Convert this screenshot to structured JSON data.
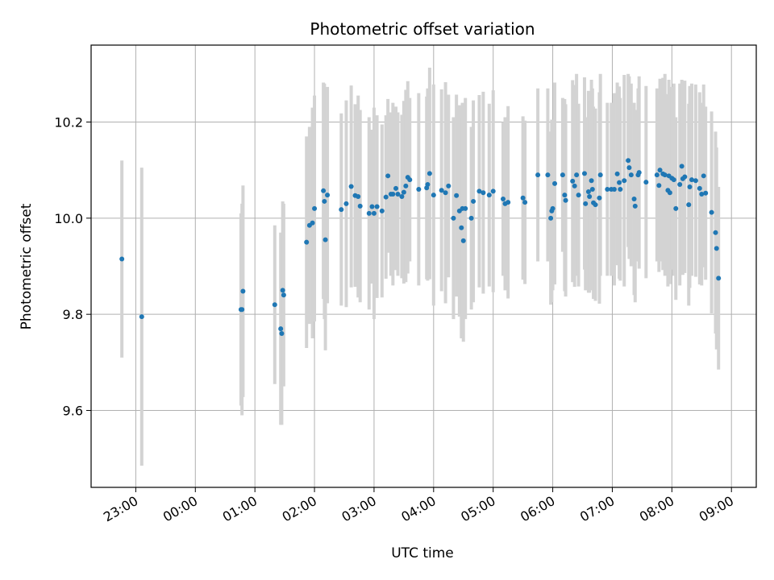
{
  "chart_data": {
    "type": "scatter",
    "title": "Photometric offset variation",
    "xlabel": "UTC time",
    "ylabel": "Photometric offset",
    "x_unit": "hours, UTC (22:00 on the first night to 09:00 next morning)",
    "xlim": [
      "22:15",
      "09:25"
    ],
    "ylim": [
      9.44,
      10.36
    ],
    "x_ticks": [
      "23:00",
      "00:00",
      "01:00",
      "02:00",
      "03:00",
      "04:00",
      "05:00",
      "06:00",
      "07:00",
      "08:00",
      "09:00"
    ],
    "y_ticks": [
      "9.6",
      "9.8",
      "10.0",
      "10.2"
    ],
    "y_tick_values": [
      9.6,
      9.8,
      10.0,
      10.2
    ],
    "grid": true,
    "colors": {
      "point": "#1f77b4",
      "errorbar": "#d3d3d3",
      "grid": "#b0b0b0",
      "axes": "#000000"
    },
    "series": [
      {
        "points": [
          [
            "22:46",
            9.915,
            0.205
          ],
          [
            "23:06",
            9.795,
            0.31
          ],
          [
            "00:46",
            9.81,
            0.2
          ],
          [
            "00:47",
            9.81,
            0.22
          ],
          [
            "00:48",
            9.848,
            0.22
          ],
          [
            "01:20",
            9.82,
            0.165
          ],
          [
            "01:26",
            9.77,
            0.2
          ],
          [
            "01:27",
            9.76,
            0.19
          ],
          [
            "01:28",
            9.85,
            0.185
          ],
          [
            "01:29",
            9.84,
            0.19
          ],
          [
            "01:52",
            9.95,
            0.22
          ],
          [
            "01:55",
            9.985,
            0.205
          ],
          [
            "01:58",
            9.99,
            0.24
          ],
          [
            "02:00",
            10.02,
            0.235
          ],
          [
            "02:09",
            10.057,
            0.225
          ],
          [
            "02:10",
            10.035,
            0.245
          ],
          [
            "02:11",
            9.955,
            0.23
          ],
          [
            "02:13",
            10.048,
            0.225
          ],
          [
            "02:27",
            10.018,
            0.2
          ],
          [
            "02:32",
            10.03,
            0.215
          ],
          [
            "02:37",
            10.066,
            0.21
          ],
          [
            "02:41",
            10.047,
            0.19
          ],
          [
            "02:44",
            10.045,
            0.21
          ],
          [
            "02:46",
            10.025,
            0.2
          ],
          [
            "02:55",
            10.01,
            0.2
          ],
          [
            "02:58",
            10.024,
            0.16
          ],
          [
            "03:00",
            10.01,
            0.22
          ],
          [
            "03:03",
            10.024,
            0.19
          ],
          [
            "03:08",
            10.015,
            0.18
          ],
          [
            "03:12",
            10.044,
            0.17
          ],
          [
            "03:14",
            10.088,
            0.16
          ],
          [
            "03:17",
            10.05,
            0.17
          ],
          [
            "03:19",
            10.05,
            0.19
          ],
          [
            "03:22",
            10.062,
            0.17
          ],
          [
            "03:24",
            10.05,
            0.17
          ],
          [
            "03:28",
            10.045,
            0.17
          ],
          [
            "03:30",
            10.054,
            0.19
          ],
          [
            "03:32",
            10.067,
            0.2
          ],
          [
            "03:34",
            10.085,
            0.2
          ],
          [
            "03:36",
            10.08,
            0.17
          ],
          [
            "03:45",
            10.06,
            0.2
          ],
          [
            "03:53",
            10.063,
            0.19
          ],
          [
            "03:54",
            10.07,
            0.2
          ],
          [
            "03:56",
            10.093,
            0.22
          ],
          [
            "04:00",
            10.048,
            0.23
          ],
          [
            "04:08",
            10.058,
            0.21
          ],
          [
            "04:12",
            10.053,
            0.23
          ],
          [
            "04:15",
            10.067,
            0.19
          ],
          [
            "04:20",
            10.0,
            0.21
          ],
          [
            "04:23",
            10.047,
            0.21
          ],
          [
            "04:26",
            10.015,
            0.22
          ],
          [
            "04:28",
            9.98,
            0.23
          ],
          [
            "04:29",
            10.02,
            0.22
          ],
          [
            "04:30",
            9.953,
            0.21
          ],
          [
            "04:32",
            10.02,
            0.23
          ],
          [
            "04:38",
            10.0,
            0.19
          ],
          [
            "04:40",
            10.035,
            0.21
          ],
          [
            "04:46",
            10.056,
            0.2
          ],
          [
            "04:50",
            10.053,
            0.21
          ],
          [
            "04:56",
            10.048,
            0.19
          ],
          [
            "05:00",
            10.056,
            0.21
          ],
          [
            "05:10",
            10.04,
            0.16
          ],
          [
            "05:12",
            10.03,
            0.18
          ],
          [
            "05:15",
            10.033,
            0.2
          ],
          [
            "05:30",
            10.042,
            0.17
          ],
          [
            "05:32",
            10.033,
            0.17
          ],
          [
            "05:45",
            10.09,
            0.18
          ],
          [
            "05:55",
            10.09,
            0.18
          ],
          [
            "05:58",
            10.0,
            0.18
          ],
          [
            "05:59",
            10.015,
            0.19
          ],
          [
            "06:00",
            10.02,
            0.17
          ],
          [
            "06:02",
            10.072,
            0.21
          ],
          [
            "06:10",
            10.09,
            0.16
          ],
          [
            "06:12",
            10.048,
            0.2
          ],
          [
            "06:13",
            10.037,
            0.2
          ],
          [
            "06:20",
            10.077,
            0.21
          ],
          [
            "06:22",
            10.067,
            0.21
          ],
          [
            "06:24",
            10.09,
            0.21
          ],
          [
            "06:26",
            10.048,
            0.19
          ],
          [
            "06:32",
            10.093,
            0.2
          ],
          [
            "06:33",
            10.03,
            0.18
          ],
          [
            "06:36",
            10.055,
            0.21
          ],
          [
            "06:37",
            10.045,
            0.2
          ],
          [
            "06:39",
            10.078,
            0.21
          ],
          [
            "06:40",
            10.06,
            0.21
          ],
          [
            "06:41",
            10.032,
            0.2
          ],
          [
            "06:43",
            10.028,
            0.2
          ],
          [
            "06:47",
            10.042,
            0.22
          ],
          [
            "06:48",
            10.09,
            0.21
          ],
          [
            "06:55",
            10.06,
            0.18
          ],
          [
            "06:59",
            10.06,
            0.18
          ],
          [
            "07:02",
            10.06,
            0.2
          ],
          [
            "07:05",
            10.092,
            0.19
          ],
          [
            "07:07",
            10.074,
            0.2
          ],
          [
            "07:08",
            10.06,
            0.19
          ],
          [
            "07:12",
            10.078,
            0.22
          ],
          [
            "07:16",
            10.12,
            0.18
          ],
          [
            "07:17",
            10.105,
            0.19
          ],
          [
            "07:19",
            10.09,
            0.19
          ],
          [
            "07:22",
            10.04,
            0.2
          ],
          [
            "07:23",
            10.025,
            0.2
          ],
          [
            "07:26",
            10.09,
            0.18
          ],
          [
            "07:27",
            10.095,
            0.2
          ],
          [
            "07:34",
            10.075,
            0.2
          ],
          [
            "07:45",
            10.09,
            0.18
          ],
          [
            "07:47",
            10.068,
            0.18
          ],
          [
            "07:48",
            10.1,
            0.19
          ],
          [
            "07:51",
            10.092,
            0.2
          ],
          [
            "07:53",
            10.09,
            0.21
          ],
          [
            "07:56",
            10.058,
            0.2
          ],
          [
            "07:57",
            10.088,
            0.2
          ],
          [
            "07:58",
            10.053,
            0.19
          ],
          [
            "08:00",
            10.083,
            0.19
          ],
          [
            "08:02",
            10.08,
            0.2
          ],
          [
            "08:04",
            10.02,
            0.19
          ],
          [
            "08:08",
            10.07,
            0.21
          ],
          [
            "08:10",
            10.108,
            0.18
          ],
          [
            "08:11",
            10.082,
            0.2
          ],
          [
            "08:13",
            10.086,
            0.2
          ],
          [
            "08:17",
            10.028,
            0.21
          ],
          [
            "08:18",
            10.065,
            0.21
          ],
          [
            "08:20",
            10.08,
            0.2
          ],
          [
            "08:24",
            10.078,
            0.2
          ],
          [
            "08:28",
            10.062,
            0.2
          ],
          [
            "08:30",
            10.05,
            0.19
          ],
          [
            "08:32",
            10.088,
            0.19
          ],
          [
            "08:34",
            10.052,
            0.18
          ],
          [
            "08:40",
            10.012,
            0.21
          ],
          [
            "08:44",
            9.97,
            0.21
          ],
          [
            "08:45",
            9.937,
            0.21
          ],
          [
            "08:47",
            9.875,
            0.19
          ]
        ]
      }
    ]
  }
}
